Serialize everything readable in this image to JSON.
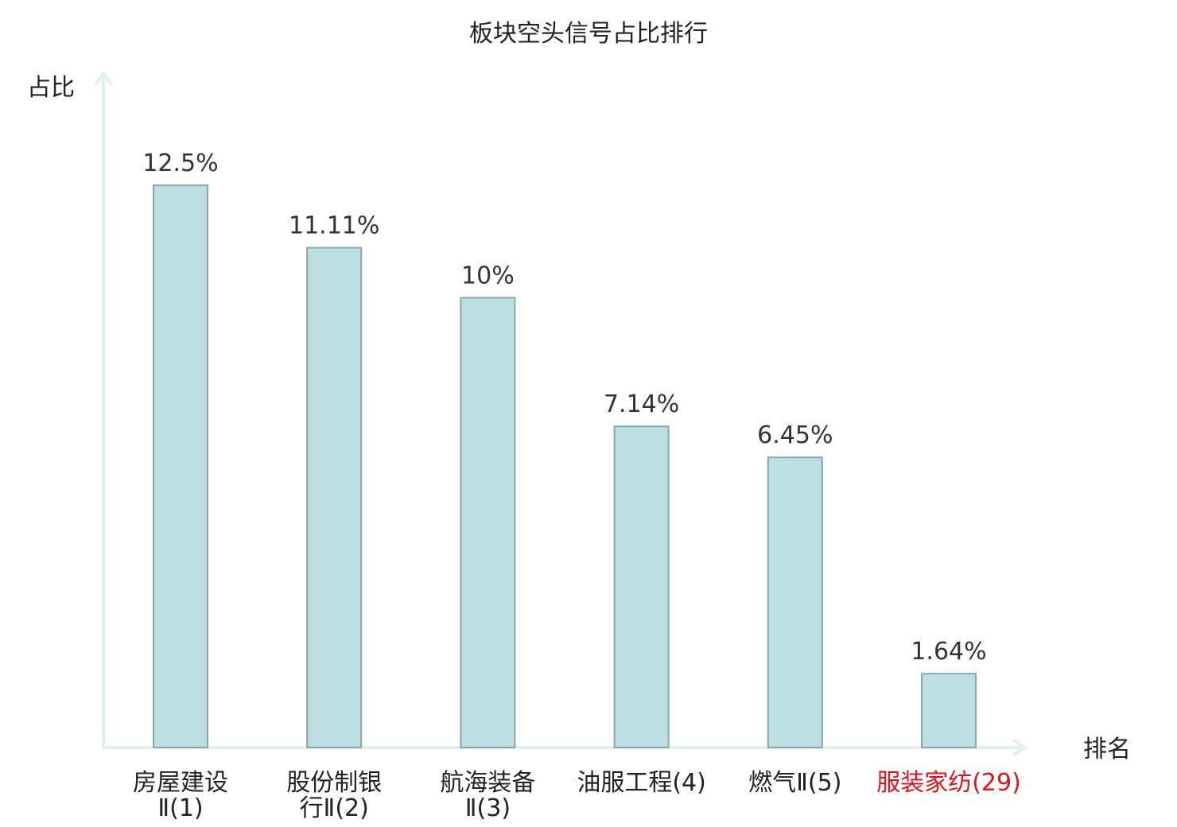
{
  "chart_data": {
    "type": "bar",
    "title": "板块空头信号占比排行",
    "ylabel": "占比",
    "xlabel": "排名",
    "ylim": [
      0,
      14
    ],
    "grid": false,
    "unit": "%",
    "categories": [
      {
        "lines": [
          "房屋建设",
          "Ⅱ(1)"
        ],
        "highlight": false
      },
      {
        "lines": [
          "股份制银",
          "行Ⅱ(2)"
        ],
        "highlight": false
      },
      {
        "lines": [
          "航海装备",
          "Ⅱ(3)"
        ],
        "highlight": false
      },
      {
        "lines": [
          "油服工程(4)"
        ],
        "highlight": false
      },
      {
        "lines": [
          "燃气Ⅱ(5)"
        ],
        "highlight": false
      },
      {
        "lines": [
          "服装家纺(29)"
        ],
        "highlight": true
      }
    ],
    "values": [
      12.5,
      11.11,
      10,
      7.14,
      6.45,
      1.64
    ],
    "value_labels": [
      "12.5%",
      "11.11%",
      "10%",
      "7.14%",
      "6.45%",
      "1.64%"
    ]
  },
  "colors": {
    "bar_fill": "#bce0e2",
    "bar_stroke": "#86a8aa",
    "axis": "#dff2ef",
    "highlight": "#e0141e"
  }
}
